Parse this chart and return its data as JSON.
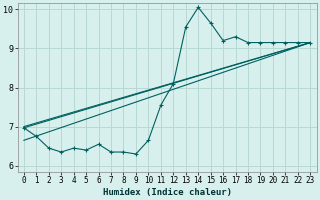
{
  "xlabel": "Humidex (Indice chaleur)",
  "bg_color": "#d8f0ed",
  "grid_color": "#b8d8d4",
  "line_color": "#006060",
  "xlim": [
    -0.5,
    23.5
  ],
  "ylim": [
    5.85,
    10.15
  ],
  "yticks": [
    6,
    7,
    8,
    9,
    10
  ],
  "xticks": [
    0,
    1,
    2,
    3,
    4,
    5,
    6,
    7,
    8,
    9,
    10,
    11,
    12,
    13,
    14,
    15,
    16,
    17,
    18,
    19,
    20,
    21,
    22,
    23
  ],
  "main_x": [
    0,
    1,
    2,
    3,
    4,
    5,
    6,
    7,
    8,
    9,
    10,
    11,
    12,
    13,
    14,
    15,
    16,
    17,
    18,
    19,
    20,
    21,
    22,
    23
  ],
  "main_y": [
    6.97,
    6.75,
    6.45,
    6.35,
    6.45,
    6.4,
    6.55,
    6.35,
    6.35,
    6.3,
    6.65,
    7.55,
    8.1,
    9.55,
    10.05,
    9.65,
    9.2,
    9.3,
    9.15,
    9.15,
    9.15,
    9.15,
    9.15,
    9.15
  ],
  "trend1_x": [
    0,
    23
  ],
  "trend1_y": [
    6.97,
    9.15
  ],
  "trend2_x": [
    0,
    23
  ],
  "trend2_y": [
    7.0,
    9.15
  ],
  "trend3_x": [
    0,
    23
  ],
  "trend3_y": [
    6.65,
    9.15
  ]
}
